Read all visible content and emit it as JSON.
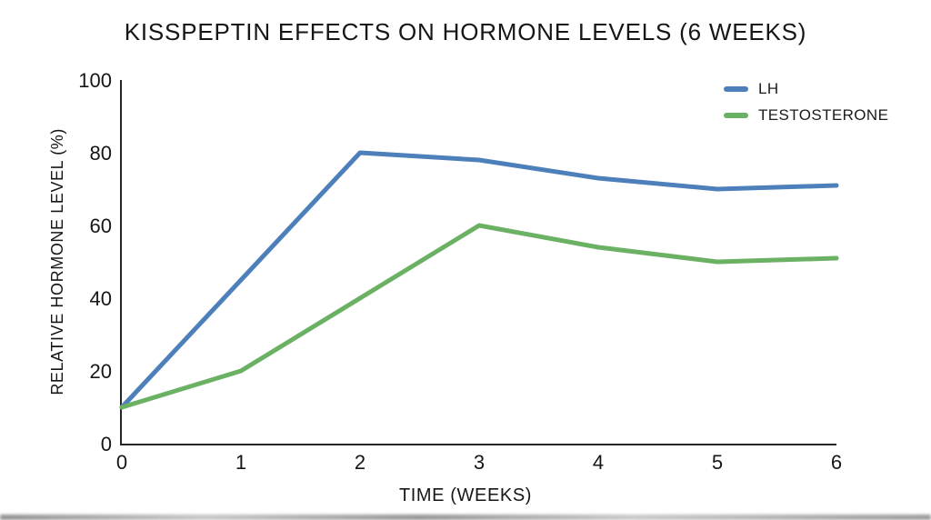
{
  "title": "KISSPEPTIN EFFECTS ON HORMONE LEVELS (6 WEEKS)",
  "chart_data": {
    "type": "line",
    "title": "KISSPEPTIN EFFECTS ON HORMONE LEVELS (6 WEEKS)",
    "xlabel": "TIME (WEEKS)",
    "ylabel": "RELATIVE HORMONE LEVEL (%)",
    "x": [
      0,
      1,
      2,
      3,
      4,
      5,
      6
    ],
    "series": [
      {
        "name": "LH",
        "color": "#4d80ba",
        "values": [
          10,
          45,
          80,
          78,
          73,
          70,
          71
        ]
      },
      {
        "name": "TESTOSTERONE",
        "color": "#6bb164",
        "values": [
          10,
          20,
          40,
          60,
          54,
          50,
          51
        ]
      }
    ],
    "xlim": [
      0,
      6
    ],
    "ylim": [
      0,
      100
    ],
    "xticks": [
      0,
      1,
      2,
      3,
      4,
      5,
      6
    ],
    "yticks": [
      0,
      20,
      40,
      60,
      80,
      100
    ],
    "grid": false,
    "legend_position": "top-right",
    "line_width": 5
  },
  "colors": {
    "axis": "#262626",
    "text": "#161616",
    "background": "#ffffff",
    "lh": "#4d80ba",
    "testosterone": "#6bb164"
  }
}
